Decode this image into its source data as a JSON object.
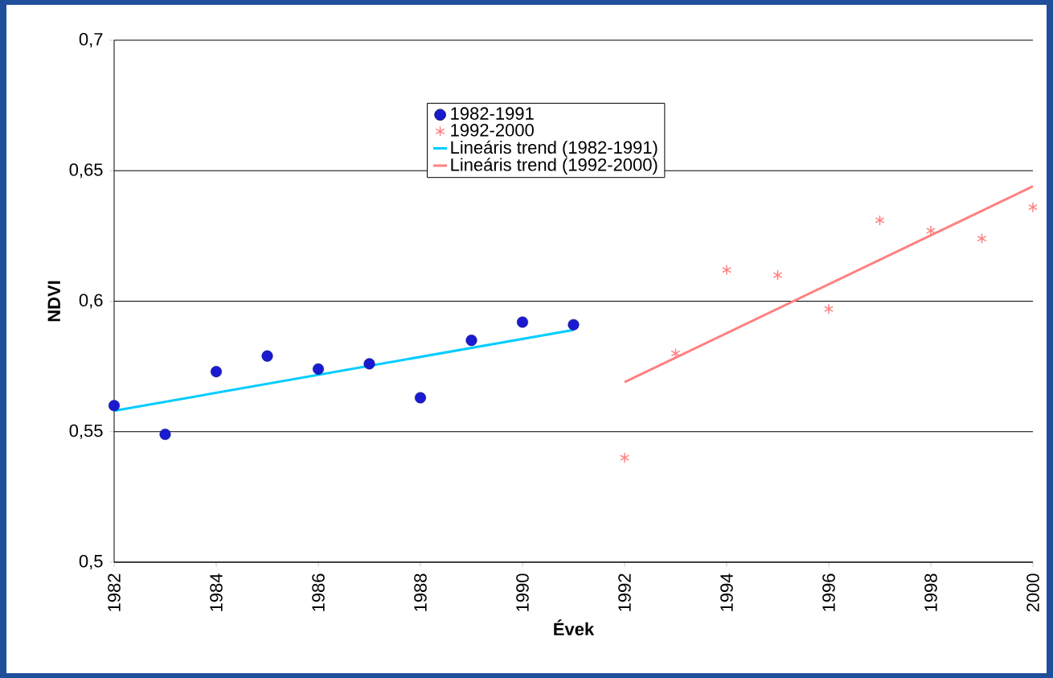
{
  "chart_data": {
    "type": "scatter",
    "xlabel": "Évek",
    "ylabel": "NDVI",
    "xlim": [
      1982,
      2000
    ],
    "ylim": [
      0.5,
      0.7
    ],
    "xticks": [
      1982,
      1984,
      1986,
      1988,
      1990,
      1992,
      1994,
      1996,
      1998,
      2000
    ],
    "yticks": [
      {
        "value": 0.5,
        "label": "0,5"
      },
      {
        "value": 0.55,
        "label": "0,55"
      },
      {
        "value": 0.6,
        "label": "0,6"
      },
      {
        "value": 0.65,
        "label": "0,65"
      },
      {
        "value": 0.7,
        "label": "0,7"
      }
    ],
    "grid": "y",
    "legend": "top",
    "series": [
      {
        "name": "1982-1991",
        "marker": "circle",
        "color": "#1a1ad0",
        "x": [
          1982,
          1983,
          1984,
          1985,
          1986,
          1987,
          1988,
          1989,
          1990,
          1991
        ],
        "values": [
          0.56,
          0.549,
          0.573,
          0.579,
          0.574,
          0.576,
          0.563,
          0.585,
          0.592,
          0.591
        ]
      },
      {
        "name": "1992-2000",
        "marker": "cross",
        "color": "#ff8080",
        "x": [
          1992,
          1993,
          1994,
          1995,
          1996,
          1997,
          1998,
          1999,
          2000
        ],
        "values": [
          0.54,
          0.58,
          0.612,
          0.61,
          0.597,
          0.631,
          0.627,
          0.624,
          0.636
        ]
      },
      {
        "name": "Lineáris trend (1982-1991)",
        "type": "line",
        "marker": "none",
        "color": "#00ccff",
        "x": [
          1982,
          1991
        ],
        "values": [
          0.558,
          0.589
        ]
      },
      {
        "name": "Lineáris trend (1992-2000)",
        "type": "line",
        "marker": "none",
        "color": "#ff8080",
        "x": [
          1992,
          2000
        ],
        "values": [
          0.569,
          0.644
        ]
      }
    ]
  }
}
